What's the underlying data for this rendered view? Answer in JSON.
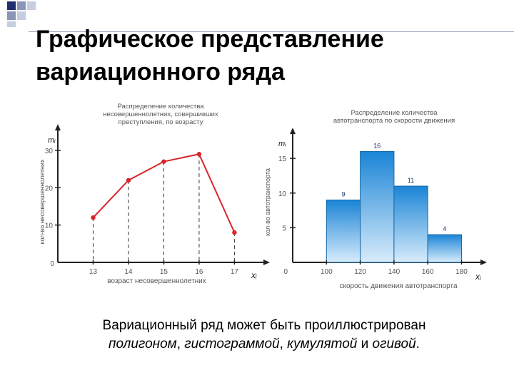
{
  "slide": {
    "title_line1": "Графическое представление",
    "title_line2": "вариационного ряда"
  },
  "caption": {
    "line1": "Вариационный ряд может быть проиллюстрирован",
    "part_polygon": "полигоном",
    "sep1": ", ",
    "part_histogram": "гистограммой",
    "sep2": ", ",
    "part_cumulate": "кумулятой",
    "sep3": " и ",
    "part_ogive": "огивой",
    "end": "."
  },
  "colors": {
    "polygon_line": "#d9262a",
    "bar_top": "#1a84d6",
    "bar_bottom": "#d8ecfb",
    "bar_stroke": "#1568a8",
    "axis": "#222222",
    "label": "#555555",
    "accent_dark": "#1f2f6e"
  },
  "chart_data": [
    {
      "type": "line",
      "title": "Распределение количества\nнесовершеннолетних, совершивших\nпреступления, по возрасту",
      "xlabel": "возраст несовершеннолетних",
      "ylabel": "кол-во несовершеннолетних",
      "x_symbol": "xᵢ",
      "y_symbol": "mᵢ",
      "x": [
        13,
        14,
        15,
        16,
        17
      ],
      "x_ticks": [
        "13",
        "14",
        "15",
        "16",
        "17"
      ],
      "y": [
        12,
        22,
        27,
        29,
        8
      ],
      "y_ticks": [
        "10",
        "20",
        "30"
      ],
      "origin_label": "0",
      "xlim": [
        12,
        17.8
      ],
      "ylim": [
        0,
        34
      ],
      "dashed_droplines": true
    },
    {
      "type": "bar",
      "title": "Распределение количества\nавтотранспорта по скорости движения",
      "xlabel": "скорость движения автотранспорта",
      "ylabel": "кол-во автотранспорта",
      "x_symbol": "xᵢ",
      "y_symbol": "mᵢ",
      "bins": [
        [
          100,
          120
        ],
        [
          120,
          140
        ],
        [
          140,
          160
        ],
        [
          160,
          180
        ]
      ],
      "x_ticks": [
        "100",
        "120",
        "140",
        "160",
        "180"
      ],
      "values": [
        9,
        16,
        11,
        4
      ],
      "value_labels": [
        "9",
        "16",
        "11",
        "4"
      ],
      "y_ticks": [
        "5",
        "10",
        "15"
      ],
      "origin_label": "0",
      "xlim": [
        80,
        195
      ],
      "ylim": [
        0,
        18
      ]
    }
  ]
}
